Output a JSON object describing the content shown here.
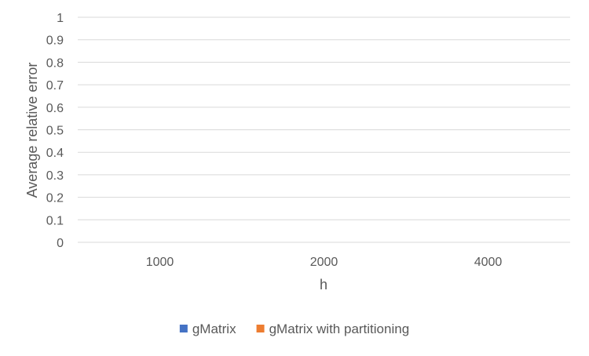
{
  "chart_data": {
    "type": "bar",
    "title": "",
    "xlabel": "h",
    "ylabel": "Average relative error",
    "categories": [
      "1000",
      "2000",
      "4000"
    ],
    "ylim": [
      0,
      1
    ],
    "yticks": [
      "0",
      "0.1",
      "0.2",
      "0.3",
      "0.4",
      "0.5",
      "0.6",
      "0.7",
      "0.8",
      "0.9",
      "1"
    ],
    "grid": true,
    "legend_position": "bottom",
    "series": [
      {
        "name": "gMatrix",
        "color": "#4472C4",
        "values": [
          0,
          0,
          0
        ]
      },
      {
        "name": "gMatrix with partitioning",
        "color": "#ED7D31",
        "values": [
          0,
          0,
          0
        ]
      }
    ]
  }
}
